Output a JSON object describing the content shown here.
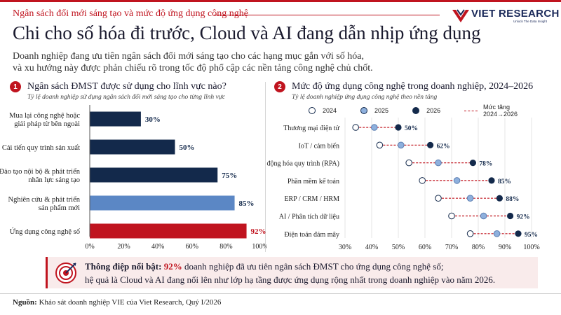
{
  "header": {
    "kicker": "Ngân sách đổi mới sáng tạo và mức độ ứng dụng công nghệ",
    "brand": "VIET RESEARCH",
    "brand_tagline": "Unlock The Data Insight",
    "title": "Chi cho số hóa đi trước, Cloud và AI đang dẫn nhịp ứng dụng",
    "subtitle_line1": "Doanh nghiệp đang ưu tiên ngân sách đổi mới sáng tạo cho các hạng mục gắn với số hóa,",
    "subtitle_line2": "và xu hướng này được phản chiếu rõ trong tốc độ phổ cập các nền tảng công nghệ chủ chốt."
  },
  "section1": {
    "number": "1",
    "title": "Ngân sách ĐMST được sử dụng cho lĩnh vực nào?",
    "subtitle": "Tỷ lệ doanh nghiệp sử dụng ngân sách đổi mới sáng tạo cho từng lĩnh vực"
  },
  "section2": {
    "number": "2",
    "title": "Mức độ ứng dụng công nghệ trong doanh nghiệp, 2024–2026",
    "subtitle": "Tỷ lệ doanh nghiệp ứng dụng công nghệ theo nền tảng"
  },
  "colors": {
    "accent": "#c0141f",
    "navy": "#13294b",
    "mid_blue": "#5b87c5",
    "light_blue": "#8eb0dd"
  },
  "chart_data": [
    {
      "type": "bar",
      "orientation": "horizontal",
      "categories": [
        [
          "Mua lại công nghệ hoặc",
          "giải pháp từ bên ngoài"
        ],
        [
          "Cải tiến quy trình sản xuất"
        ],
        [
          "Đào tạo nội bộ & phát triển",
          "nhân lực sáng tạo"
        ],
        [
          "Nghiên cứu & phát triển",
          "sản phẩm mới"
        ],
        [
          "Ứng dụng công nghệ số"
        ]
      ],
      "values": [
        30,
        50,
        75,
        85,
        92
      ],
      "value_labels": [
        "30%",
        "50%",
        "75%",
        "85%",
        "92%"
      ],
      "bar_colors": [
        "#13294b",
        "#13294b",
        "#13294b",
        "#5b87c5",
        "#c0141f"
      ],
      "xlim": [
        0,
        100
      ],
      "xticks": [
        "0%",
        "20%",
        "40%",
        "60%",
        "80%",
        "100%"
      ]
    },
    {
      "type": "scatter",
      "style": "dumbbell",
      "categories": [
        "Thương mại điện tử",
        "IoT / cảm biến",
        "Tự động hóa quy trình (RPA)",
        "Phần mềm kế toán",
        "ERP / CRM / HRM",
        "AI / Phân tích dữ liệu",
        "Điện toán đám mây"
      ],
      "series": [
        {
          "name": "2024",
          "values": [
            34,
            43,
            54,
            59,
            65,
            70,
            77
          ]
        },
        {
          "name": "2025",
          "values": [
            41,
            51,
            65,
            72,
            77,
            82,
            87
          ]
        },
        {
          "name": "2026",
          "values": [
            50,
            62,
            78,
            85,
            88,
            92,
            95
          ]
        }
      ],
      "value_labels": [
        "50%",
        "62%",
        "78%",
        "85%",
        "88%",
        "92%",
        "95%"
      ],
      "connector_label": "Mức tăng 2024→2026",
      "xlim": [
        30,
        100
      ],
      "xticks": [
        "30%",
        "40%",
        "50%",
        "60%",
        "70%",
        "80%",
        "90%",
        "100%"
      ],
      "legend_position": "top"
    }
  ],
  "callout": {
    "label": "Thông điệp nổi bật:",
    "highlight": "92%",
    "line1_rest": "doanh nghiệp đã ưu tiên ngân sách ĐMST cho ứng dụng công nghệ số;",
    "line2": "hệ quả là Cloud và AI đang nổi lên như lớp hạ tầng được ứng dụng rộng nhất trong doanh nghiệp vào năm 2026."
  },
  "footer": {
    "label": "Nguồn:",
    "text": "Khảo sát doanh nghiệp VIE của Viet Research, Quý I/2026"
  }
}
